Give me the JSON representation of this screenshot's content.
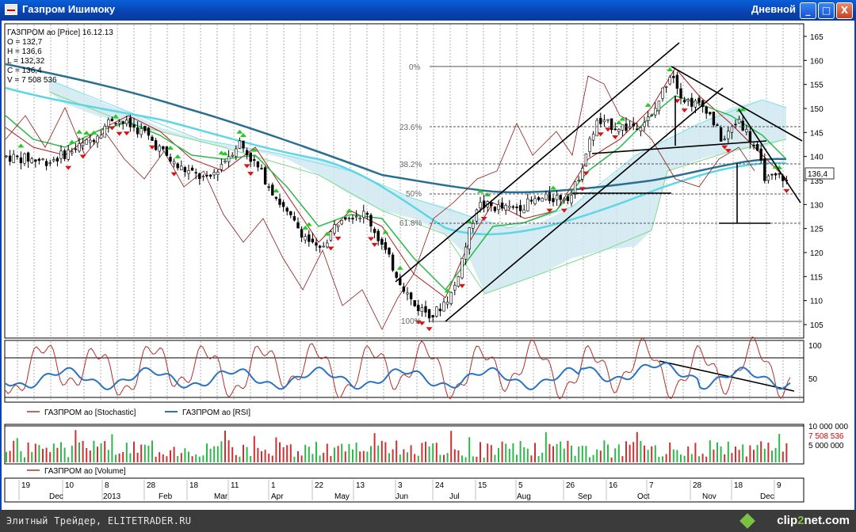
{
  "window": {
    "title": "Газпром Ишимоку",
    "period": "Дневной",
    "buttons": [
      "_",
      "□",
      "X"
    ]
  },
  "info": {
    "header": "ГАЗПРОМ ао [Price] 16.12.13",
    "open": "O = 132,7",
    "high": "H = 136,6",
    "low": "L = 132,32",
    "close": "C = 136,4",
    "volume": "V = 7 508 536"
  },
  "price_axis": {
    "ticks": [
      "165",
      "160",
      "155",
      "150",
      "145",
      "140",
      "135",
      "130",
      "125",
      "120",
      "115",
      "110",
      "105"
    ],
    "current": "136,4"
  },
  "fib_labels": [
    "0%",
    "23.6%",
    "38.2%",
    "50%",
    "61.8%",
    "100%"
  ],
  "osc_axis": {
    "ticks": [
      "100",
      "50"
    ]
  },
  "osc_legend": [
    {
      "label": "ГАЗПРОМ ао [Stochastic]",
      "color": "#b0302a"
    },
    {
      "label": "ГАЗПРОМ ао [RSI]",
      "color": "#2a73c0"
    }
  ],
  "volume_axis": {
    "ticks": [
      "10 000 000",
      "5 000 000"
    ],
    "current": "7 508 536"
  },
  "volume_legend": {
    "label": "ГАЗПРОМ ао [Volume]",
    "color": "#b0302a"
  },
  "time_axis": {
    "days": [
      "19",
      "10",
      "8",
      "28",
      "18",
      "11",
      "1",
      "22",
      "13",
      "3",
      "24",
      "15",
      "5",
      "26",
      "16",
      "7",
      "28",
      "18",
      "9"
    ],
    "months": [
      "Dec",
      "2013",
      "Feb",
      "Mar",
      "Apr",
      "May",
      "Jun",
      "Jul",
      "Aug",
      "Sep",
      "Oct",
      "Nov",
      "Dec"
    ]
  },
  "statusbar": {
    "credit": "Элитный Трейдер, ELITETRADER.RU",
    "logo_a": "clip",
    "logo_b": "2",
    "logo_c": "net.com"
  },
  "colors": {
    "title_bar": "#0842b0",
    "candle": "#000000",
    "up_arrow": "#22cc22",
    "down_arrow": "#dd1111",
    "ma_long": "#2a6f8f",
    "ma_cyan": "#5fd6e6",
    "tenkan": "#b01818",
    "kijun": "#2db84a",
    "chikou": "#8b1a1a"
  }
}
